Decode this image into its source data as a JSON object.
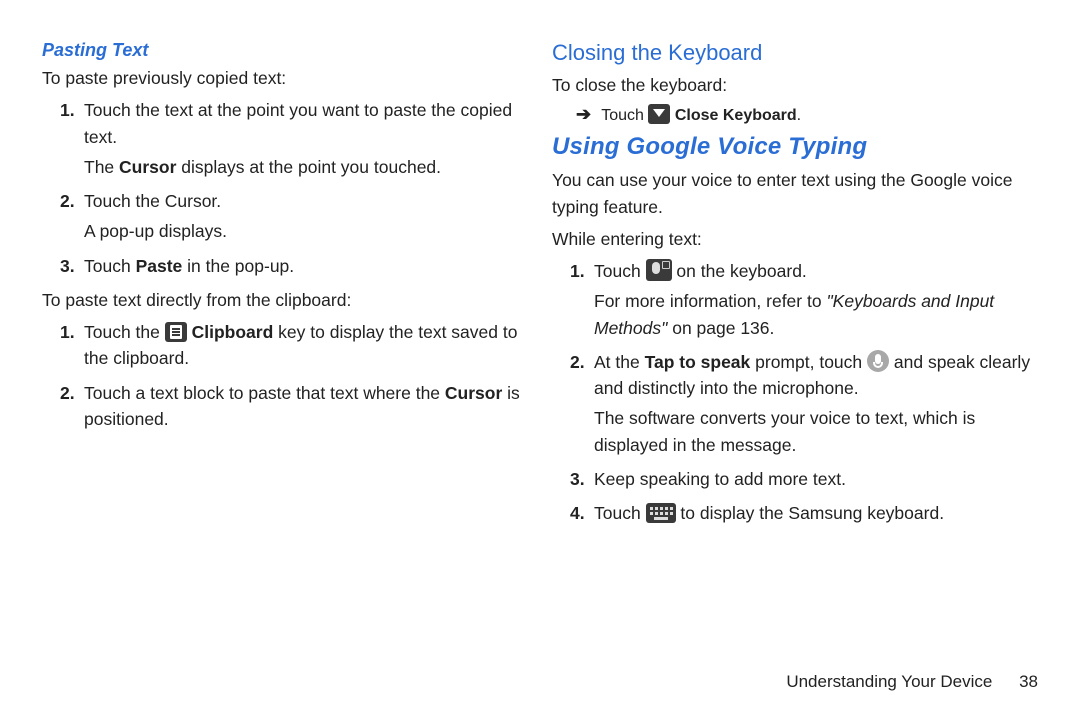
{
  "left": {
    "heading": "Pasting Text",
    "intro": "To paste previously copied text:",
    "list1": {
      "i1a": "Touch the text at the point you want to paste the copied text.",
      "i1b_pre": "The ",
      "i1b_bold": "Cursor",
      "i1b_post": " displays at the point you touched.",
      "i2a": "Touch the Cursor.",
      "i2b": "A pop-up displays.",
      "i3_pre": "Touch ",
      "i3_bold": "Paste",
      "i3_post": " in the pop-up."
    },
    "intro2": "To paste text directly from the clipboard:",
    "list2": {
      "i1_pre": "Touch the ",
      "i1_bold": "Clipboard",
      "i1_post": " key to display the text saved to the clipboard.",
      "i2_pre": "Touch a text block to paste that text where the ",
      "i2_bold": "Cursor",
      "i2_post": " is positioned."
    }
  },
  "right": {
    "h_close": "Closing the Keyboard",
    "close_intro": "To close the keyboard:",
    "close_touch": "Touch ",
    "close_bold": "Close Keyboard",
    "close_period": ".",
    "h_voice": "Using Google Voice Typing",
    "voice_intro1": "You can use your voice to enter text using the Google voice typing feature.",
    "voice_intro2": "While entering text:",
    "list": {
      "i1_pre": "Touch ",
      "i1_post": " on the keyboard.",
      "i1b_pre": "For more information, refer to ",
      "i1b_ital": "\"Keyboards and Input Methods\"",
      "i1b_post": " on page 136.",
      "i2_pre": "At the ",
      "i2_bold": "Tap to speak",
      "i2_mid": " prompt, touch ",
      "i2_post": " and speak clearly and distinctly into the microphone.",
      "i2b": "The software converts your voice to text, which is displayed in the message.",
      "i3": "Keep speaking to add more text.",
      "i4_pre": "Touch ",
      "i4_post": " to display the Samsung keyboard."
    }
  },
  "footer": {
    "section": "Understanding Your Device",
    "page": "38"
  },
  "colors": {
    "heading_blue": "#2a6dd4",
    "text": "#222222",
    "icon_dark": "#3a3a3a",
    "icon_gray": "#a8a8a8",
    "bg": "#ffffff"
  }
}
